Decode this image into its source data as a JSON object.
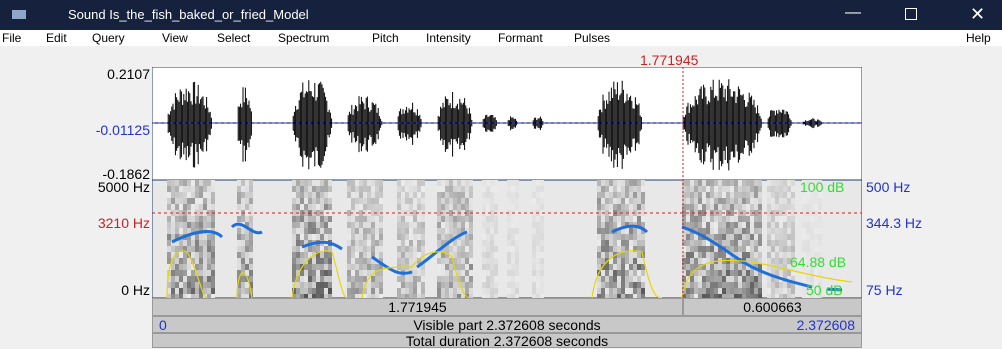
{
  "window": {
    "title": "Sound Is_the_fish_baked_or_fried_Model"
  },
  "menu": [
    "File",
    "Edit",
    "Query",
    "View",
    "Select",
    "Spectrum",
    "Pitch",
    "Intensity",
    "Formant",
    "Pulses",
    "Help"
  ],
  "waveform": {
    "top": "0.2107",
    "middle": "-0.01125",
    "bottom": "-0.1862"
  },
  "spectrogram": {
    "top": "5000 Hz",
    "cursor": "3210 Hz",
    "bottom": "0 Hz"
  },
  "cursor": {
    "time": "1.771945"
  },
  "right_axis": {
    "intensity_top": "100 dB",
    "pitch_top": "500 Hz",
    "pitch_cursor": "344.3 Hz",
    "intensity_cursor": "64.88 dB",
    "intensity_bottom": "50 dB",
    "pitch_bottom": "75 Hz"
  },
  "footer": {
    "left_segment": "1.771945",
    "right_segment": "0.600663",
    "visible_start": "0",
    "visible_label": "Visible part 2.372608 seconds",
    "visible_end": "2.372608",
    "total_label": "Total duration 2.372608 seconds"
  }
}
